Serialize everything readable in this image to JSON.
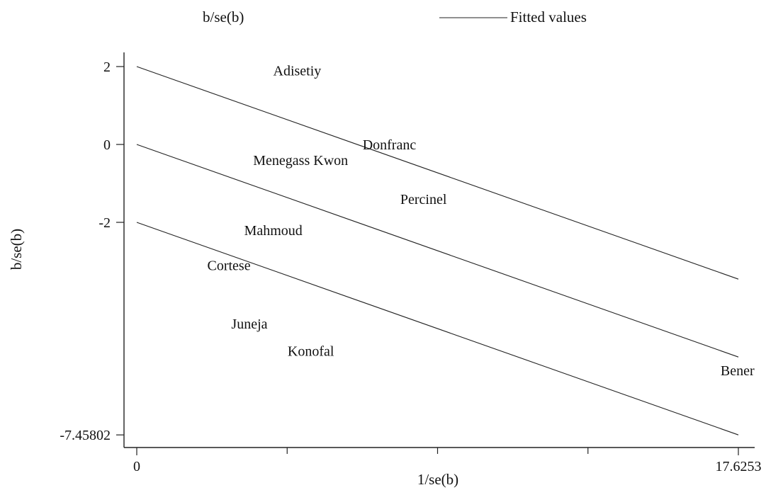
{
  "chart_data": {
    "type": "scatter",
    "legend": [
      {
        "label": "b/se(b)",
        "style": "marker-label"
      },
      {
        "label": "Fitted values",
        "style": "line"
      }
    ],
    "legend_position": "top",
    "xlabel": "1/se(b)",
    "ylabel": "b/se(b)",
    "x_ticks": [
      {
        "value": 0,
        "label": "0"
      },
      {
        "value": 17.6253,
        "label": "17.6253"
      }
    ],
    "x_minor_ticks": [
      4.4063,
      8.8127,
      13.219
    ],
    "y_ticks": [
      {
        "value": 2,
        "label": "2"
      },
      {
        "value": 0,
        "label": "0"
      },
      {
        "value": -2,
        "label": "-2"
      },
      {
        "value": -7.45802,
        "label": "-7.45802"
      }
    ],
    "xlim": [
      -0.4,
      18.2
    ],
    "ylim": [
      -7.8,
      2.45
    ],
    "grid": false,
    "points": [
      {
        "label": "Adisetiy",
        "x": 4.7,
        "y": 1.9
      },
      {
        "label": "Donfranc",
        "x": 7.4,
        "y": 0.0
      },
      {
        "label": "Menegass Kwon",
        "x": 4.8,
        "y": -0.4
      },
      {
        "label": "Percinel",
        "x": 8.4,
        "y": -1.4
      },
      {
        "label": "Mahmoud",
        "x": 4.0,
        "y": -2.2
      },
      {
        "label": "Cortese",
        "x": 2.7,
        "y": -3.1
      },
      {
        "label": "Juneja",
        "x": 3.3,
        "y": -4.6
      },
      {
        "label": "Konofal",
        "x": 5.1,
        "y": -5.3
      },
      {
        "label": "Bener",
        "x": 17.6,
        "y": -5.8
      }
    ],
    "fitted_lines": [
      {
        "x": [
          0,
          17.6253
        ],
        "y": [
          2.0,
          -3.45802
        ]
      },
      {
        "x": [
          0,
          17.6253
        ],
        "y": [
          0.0,
          -5.45802
        ]
      },
      {
        "x": [
          0,
          17.6253
        ],
        "y": [
          -2.0,
          -7.45802
        ]
      }
    ]
  }
}
